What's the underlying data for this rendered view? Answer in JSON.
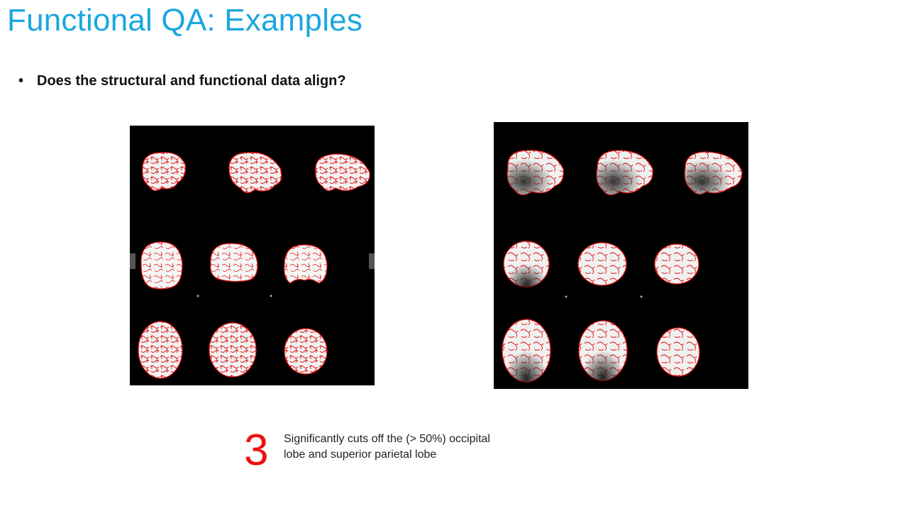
{
  "slide": {
    "title": "Functional QA: Examples",
    "bullet": "Does the structural and functional data align?",
    "rating": "3",
    "note_line1": "Significantly cuts off the (> 50%) occipital",
    "note_line2": "lobe and superior parietal lobe"
  },
  "colors": {
    "title": "#1aa7e0",
    "rating": "#ee1111",
    "overlay": "#e01010"
  },
  "images": [
    {
      "name": "left-brain-montage",
      "description_icon": "brain-slice-montage-icon",
      "rows": 3,
      "cols": 3
    },
    {
      "name": "right-brain-montage",
      "description_icon": "brain-slice-montage-icon",
      "rows": 3,
      "cols": 3
    }
  ]
}
